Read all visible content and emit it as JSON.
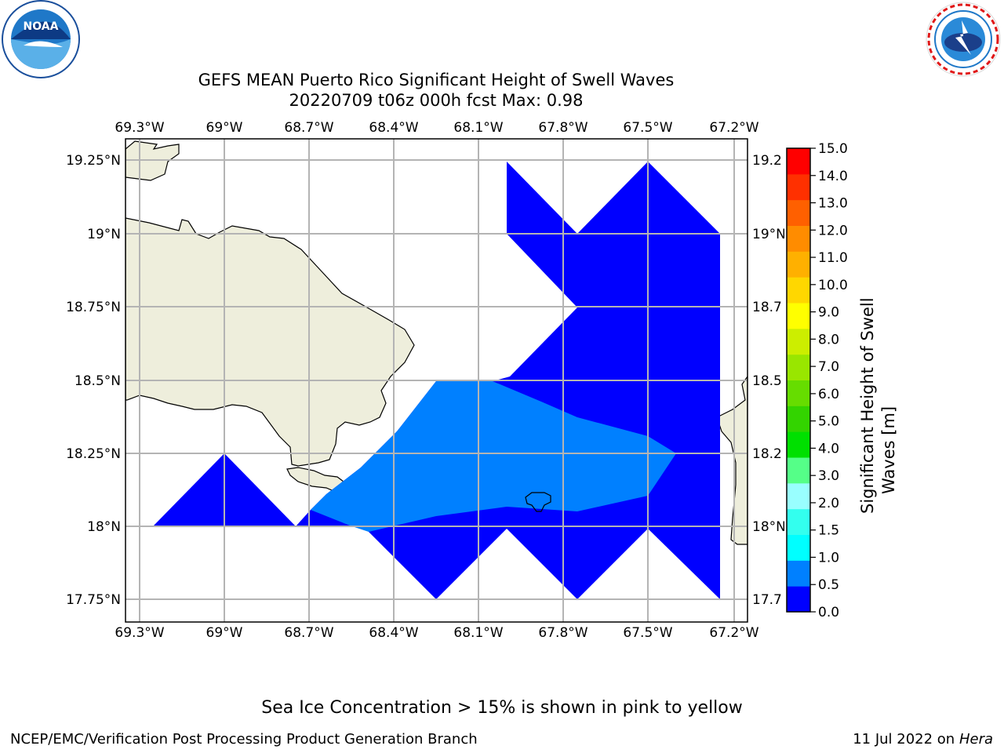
{
  "header": {
    "title_line1": "GEFS MEAN Puerto Rico Significant Height of Swell Waves",
    "title_line2": "20220709 t06z 000h fcst   Max: 0.98",
    "noaa_logo_text": "NOAA",
    "noaa_ring_text": "NATIONAL OCEANIC AND ATMOSPHERIC ADMINISTRATION · U.S. DEPARTMENT OF COMMERCE",
    "nws_ring_text": "NATIONAL WEATHER SERVICE"
  },
  "map": {
    "lon_labels": [
      "69.3°W",
      "69°W",
      "68.7°W",
      "68.4°W",
      "68.1°W",
      "67.8°W",
      "67.5°W",
      "67.2°W"
    ],
    "lat_labels_left": [
      "19.25°N",
      "19°N",
      "18.75°N",
      "18.5°N",
      "18.25°N",
      "18°N",
      "17.75°N"
    ],
    "lat_labels_right": [
      "19.2",
      "19°N",
      "18.7",
      "18.5",
      "18.2",
      "18°N",
      "17.7"
    ],
    "land_color": "#eeeedc",
    "coast_color": "#000000",
    "grid_color": "#b4b4b4",
    "field_colors": {
      "0.0-0.5": "#0000ff",
      "0.5-1.0": "#0080ff"
    }
  },
  "colorbar": {
    "ticks": [
      "0.0",
      "0.5",
      "1.0",
      "1.5",
      "2.0",
      "3.0",
      "4.0",
      "5.0",
      "6.0",
      "7.0",
      "8.0",
      "9.0",
      "10.0",
      "11.0",
      "12.0",
      "13.0",
      "14.0",
      "15.0"
    ],
    "colors": [
      "#0000ff",
      "#0080ff",
      "#00ffff",
      "#33ffee",
      "#99ffff",
      "#55ff88",
      "#00e000",
      "#33d400",
      "#66dd00",
      "#99e600",
      "#ccee00",
      "#ffff00",
      "#ffd700",
      "#ffb000",
      "#ff8c00",
      "#ff6000",
      "#ff3000",
      "#ff0000"
    ],
    "label_line1": "Significant Height of Swell",
    "label_line2": "Waves [m]"
  },
  "footer": {
    "note": "Sea Ice Concentration > 15% is shown in pink to yellow",
    "left": "NCEP/EMC/Verification Post Processing Product Generation Branch",
    "right_date": "11 Jul 2022 on ",
    "right_host": "Hera"
  }
}
